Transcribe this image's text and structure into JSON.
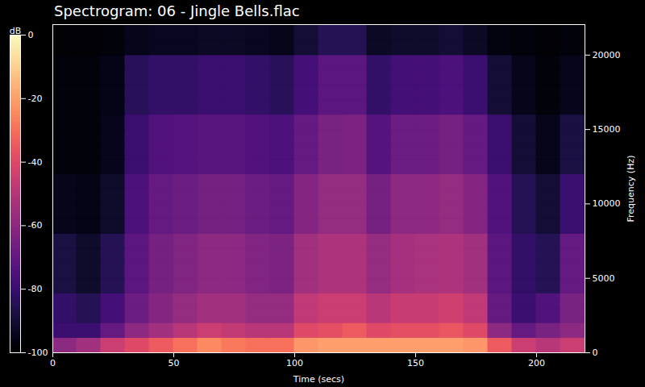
{
  "chart_data": {
    "type": "heatmap",
    "title": "Spectrogram: 06 - Jingle Bells.flac",
    "xlabel": "Time (secs)",
    "ylabel": "Frequency (Hz)",
    "xlim": [
      0,
      220
    ],
    "ylim": [
      0,
      22050
    ],
    "xticks": [
      0,
      50,
      100,
      150,
      200
    ],
    "yticks": [
      0,
      5000,
      10000,
      15000,
      20000
    ],
    "x_bins": [
      0,
      10,
      20,
      30,
      40,
      50,
      60,
      70,
      80,
      90,
      100,
      110,
      120,
      130,
      140,
      150,
      160,
      170,
      180,
      190,
      200,
      210,
      220
    ],
    "y_bins": [
      0,
      1000,
      2000,
      3000,
      4000,
      5000,
      6000,
      7000,
      8000,
      9000,
      10000,
      11000,
      12000,
      13000,
      14000,
      15000,
      16000,
      17000,
      18000,
      19000,
      20000,
      21000,
      22050
    ],
    "cells": [
      [
        -60,
        -55,
        -45,
        -40,
        -35,
        -30,
        -25,
        -28,
        -30,
        -30,
        -22,
        -20,
        -20,
        -20,
        -20,
        -20,
        -20,
        -22,
        -35,
        -45,
        -50,
        -45
      ],
      [
        -80,
        -80,
        -70,
        -60,
        -55,
        -50,
        -45,
        -47,
        -50,
        -50,
        -40,
        -38,
        -35,
        -40,
        -38,
        -38,
        -36,
        -40,
        -60,
        -70,
        -65,
        -60
      ],
      [
        -82,
        -85,
        -78,
        -68,
        -62,
        -58,
        -55,
        -55,
        -58,
        -58,
        -48,
        -45,
        -45,
        -50,
        -46,
        -46,
        -44,
        -48,
        -70,
        -80,
        -75,
        -65
      ],
      [
        -82,
        -85,
        -78,
        -68,
        -62,
        -58,
        -55,
        -55,
        -58,
        -58,
        -48,
        -45,
        -45,
        -50,
        -46,
        -46,
        -44,
        -48,
        -70,
        -80,
        -75,
        -65
      ],
      [
        -88,
        -92,
        -85,
        -72,
        -66,
        -63,
        -60,
        -60,
        -63,
        -64,
        -55,
        -52,
        -52,
        -58,
        -54,
        -53,
        -52,
        -55,
        -72,
        -82,
        -85,
        -70
      ],
      [
        -88,
        -92,
        -85,
        -72,
        -66,
        -63,
        -60,
        -60,
        -63,
        -64,
        -55,
        -52,
        -52,
        -58,
        -54,
        -53,
        -52,
        -55,
        -72,
        -82,
        -85,
        -70
      ],
      [
        -88,
        -92,
        -85,
        -72,
        -66,
        -63,
        -60,
        -60,
        -63,
        -64,
        -55,
        -52,
        -52,
        -58,
        -54,
        -53,
        -52,
        -55,
        -72,
        -82,
        -85,
        -70
      ],
      [
        -88,
        -92,
        -85,
        -72,
        -66,
        -63,
        -60,
        -60,
        -63,
        -64,
        -55,
        -52,
        -52,
        -58,
        -54,
        -53,
        -52,
        -55,
        -72,
        -82,
        -85,
        -70
      ],
      [
        -95,
        -96,
        -92,
        -76,
        -70,
        -68,
        -66,
        -66,
        -68,
        -70,
        -62,
        -58,
        -58,
        -66,
        -60,
        -60,
        -58,
        -62,
        -75,
        -85,
        -90,
        -80
      ],
      [
        -95,
        -96,
        -92,
        -76,
        -70,
        -68,
        -66,
        -66,
        -68,
        -70,
        -62,
        -58,
        -58,
        -66,
        -60,
        -60,
        -58,
        -62,
        -75,
        -85,
        -90,
        -80
      ],
      [
        -95,
        -96,
        -92,
        -76,
        -70,
        -68,
        -66,
        -66,
        -68,
        -70,
        -62,
        -58,
        -58,
        -66,
        -60,
        -60,
        -58,
        -62,
        -75,
        -85,
        -90,
        -80
      ],
      [
        -95,
        -96,
        -92,
        -76,
        -70,
        -68,
        -66,
        -66,
        -68,
        -70,
        -62,
        -58,
        -58,
        -66,
        -60,
        -60,
        -58,
        -62,
        -75,
        -85,
        -90,
        -80
      ],
      [
        -98,
        -98,
        -95,
        -80,
        -75,
        -74,
        -73,
        -73,
        -75,
        -76,
        -70,
        -65,
        -64,
        -74,
        -68,
        -68,
        -66,
        -70,
        -80,
        -90,
        -95,
        -88
      ],
      [
        -98,
        -98,
        -95,
        -80,
        -75,
        -74,
        -73,
        -73,
        -75,
        -76,
        -70,
        -65,
        -64,
        -74,
        -68,
        -68,
        -66,
        -70,
        -80,
        -90,
        -95,
        -88
      ],
      [
        -98,
        -98,
        -95,
        -80,
        -75,
        -74,
        -73,
        -73,
        -75,
        -76,
        -70,
        -65,
        -64,
        -74,
        -68,
        -68,
        -66,
        -70,
        -80,
        -90,
        -95,
        -88
      ],
      [
        -98,
        -98,
        -95,
        -80,
        -75,
        -74,
        -73,
        -73,
        -75,
        -76,
        -70,
        -65,
        -64,
        -74,
        -68,
        -68,
        -66,
        -70,
        -80,
        -90,
        -95,
        -88
      ],
      [
        -98,
        -98,
        -96,
        -84,
        -82,
        -82,
        -80,
        -80,
        -82,
        -84,
        -78,
        -72,
        -72,
        -82,
        -78,
        -78,
        -76,
        -80,
        -90,
        -95,
        -98,
        -95
      ],
      [
        -98,
        -98,
        -96,
        -84,
        -82,
        -82,
        -80,
        -80,
        -82,
        -84,
        -78,
        -72,
        -72,
        -82,
        -78,
        -78,
        -76,
        -80,
        -90,
        -95,
        -98,
        -95
      ],
      [
        -98,
        -98,
        -96,
        -84,
        -82,
        -82,
        -80,
        -80,
        -82,
        -84,
        -78,
        -72,
        -72,
        -82,
        -78,
        -78,
        -76,
        -80,
        -90,
        -95,
        -98,
        -95
      ],
      [
        -98,
        -98,
        -96,
        -84,
        -82,
        -82,
        -80,
        -80,
        -82,
        -84,
        -78,
        -72,
        -72,
        -82,
        -78,
        -78,
        -76,
        -80,
        -90,
        -95,
        -98,
        -95
      ],
      [
        -99,
        -99,
        -98,
        -95,
        -94,
        -94,
        -93,
        -93,
        -94,
        -95,
        -90,
        -85,
        -85,
        -93,
        -92,
        -92,
        -90,
        -93,
        -97,
        -98,
        -99,
        -98
      ],
      [
        -99,
        -99,
        -98,
        -95,
        -94,
        -94,
        -93,
        -93,
        -94,
        -95,
        -90,
        -85,
        -85,
        -93,
        -92,
        -92,
        -90,
        -93,
        -97,
        -98,
        -99,
        -98
      ]
    ],
    "colorbar": {
      "label": "dB",
      "range": [
        -100,
        0
      ],
      "ticks": [
        0,
        -20,
        -40,
        -60,
        -80,
        -100
      ]
    }
  }
}
